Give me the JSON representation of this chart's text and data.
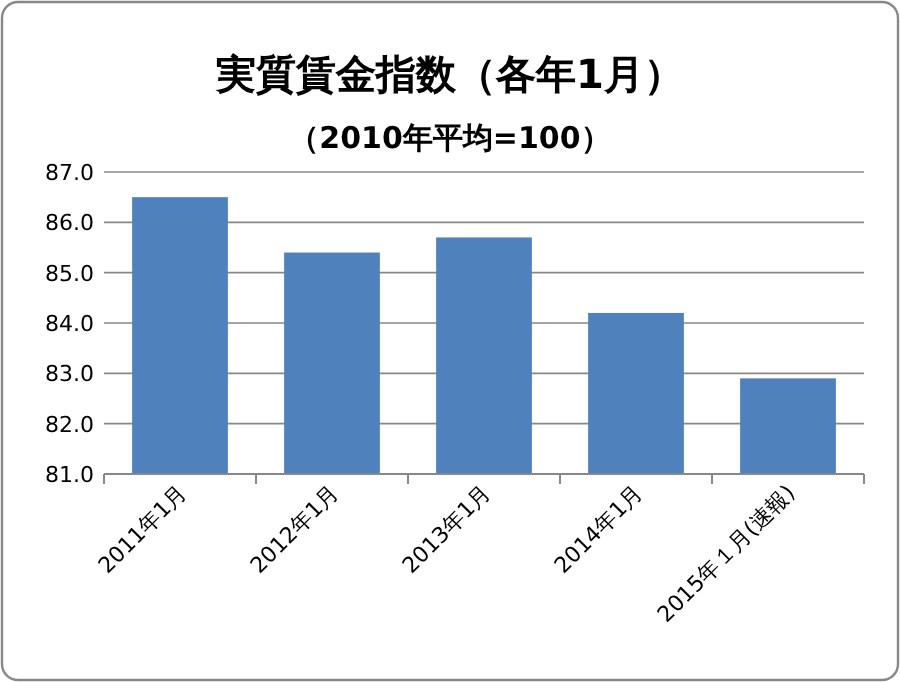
{
  "chart_data": {
    "type": "bar",
    "title": "実質賃金指数（各年1月）",
    "subtitle": "（2010年平均=100）",
    "categories": [
      "2011年1月",
      "2012年1月",
      "2013年1月",
      "2014年1月",
      "2015年１月(速報)"
    ],
    "values": [
      86.5,
      85.4,
      85.7,
      84.2,
      82.9
    ],
    "color": "#4f81bd",
    "ylim": [
      81,
      87
    ],
    "yticks": [
      {
        "value": 81,
        "label": "81.0"
      },
      {
        "value": 82,
        "label": "82.0"
      },
      {
        "value": 83,
        "label": "83.0"
      },
      {
        "value": 84,
        "label": "84.0"
      },
      {
        "value": 85,
        "label": "85.0"
      },
      {
        "value": 86,
        "label": "86.0"
      },
      {
        "value": 87,
        "label": "87.0"
      }
    ],
    "grid": "y"
  }
}
